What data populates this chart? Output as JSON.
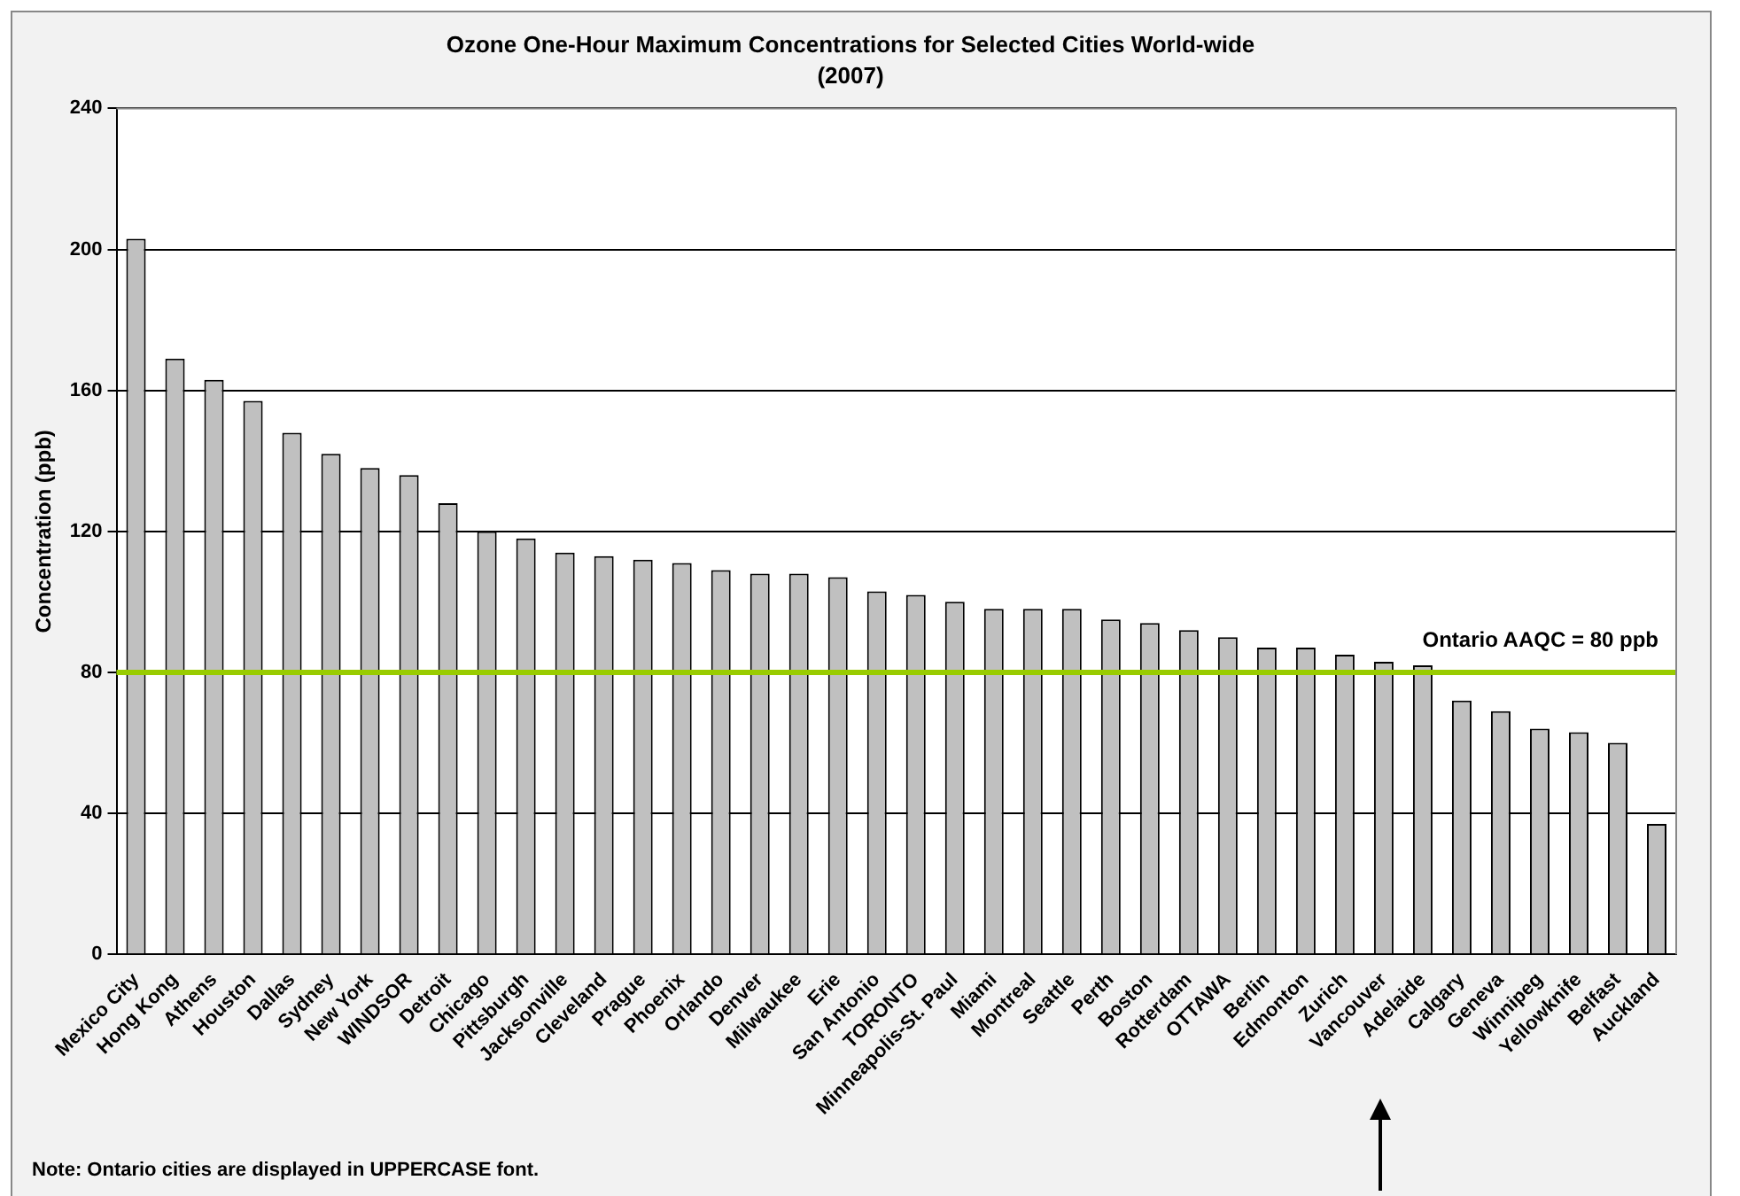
{
  "chart_data": {
    "type": "bar",
    "title": "Ozone One-Hour Maximum Concentrations for Selected Cities World-wide",
    "subtitle": "(2007)",
    "ylabel": "Concentration (ppb)",
    "categories": [
      "Mexico City",
      "Hong Kong",
      "Athens",
      "Houston",
      "Dallas",
      "Sydney",
      "New York",
      "WINDSOR",
      "Detroit",
      "Chicago",
      "Pittsburgh",
      "Jacksonville",
      "Cleveland",
      "Prague",
      "Phoenix",
      "Orlando",
      "Denver",
      "Milwaukee",
      "Erie",
      "San Antonio",
      "TORONTO",
      "Minneapolis-St. Paul",
      "Miami",
      "Montreal",
      "Seattle",
      "Perth",
      "Boston",
      "Rotterdam",
      "OTTAWA",
      "Berlin",
      "Edmonton",
      "Zurich",
      "Vancouver",
      "Adelaide",
      "Calgary",
      "Geneva",
      "Winnipeg",
      "Yellowknife",
      "Belfast",
      "Auckland"
    ],
    "values": [
      203,
      169,
      163,
      157,
      148,
      142,
      138,
      136,
      128,
      120,
      118,
      114,
      113,
      112,
      111,
      109,
      108,
      108,
      107,
      103,
      102,
      100,
      98,
      98,
      98,
      95,
      94,
      92,
      90,
      87,
      87,
      85,
      83,
      82,
      72,
      69,
      64,
      63,
      60,
      37
    ],
    "color": "#c0c0c0",
    "ylim": [
      0,
      240
    ],
    "yticks": [
      0,
      40,
      80,
      120,
      160,
      200,
      240
    ],
    "grid": "y",
    "ref_lines": [
      {
        "axis": "y",
        "value": 80,
        "label": "Ontario AAQC = 80 ppb",
        "color": "#99cc00"
      }
    ],
    "annotations": [
      "Note: Ontario cities are displayed in UPPERCASE font."
    ]
  }
}
